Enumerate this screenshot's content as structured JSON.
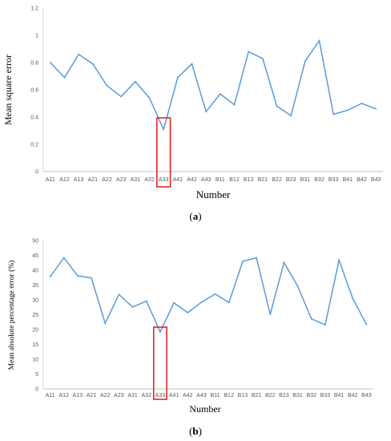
{
  "chart_data": [
    {
      "type": "line",
      "panel": "a",
      "caption_open": "(",
      "caption_letter": "a",
      "caption_close": ")",
      "xlabel": "Number",
      "ylabel": "Mean square error",
      "ylim": [
        0,
        1.2
      ],
      "yticks": [
        "0",
        "0.2",
        "0.4",
        "0.6",
        "0.8",
        "1",
        "1.2"
      ],
      "categories": [
        "A11",
        "A12",
        "A13",
        "A21",
        "A22",
        "A23",
        "A31",
        "A32",
        "A33",
        "A41",
        "A42",
        "A43",
        "B11",
        "B12",
        "B13",
        "B21",
        "B22",
        "B23",
        "B31",
        "B32",
        "B33",
        "B41",
        "B42",
        "B43"
      ],
      "values": [
        0.8,
        0.69,
        0.86,
        0.79,
        0.63,
        0.55,
        0.66,
        0.54,
        0.31,
        0.69,
        0.79,
        0.44,
        0.57,
        0.49,
        0.88,
        0.83,
        0.48,
        0.41,
        0.81,
        0.96,
        0.42,
        0.45,
        0.5,
        0.46
      ],
      "highlight_category": "A33",
      "grid": false,
      "line_color": "#5b9bd5",
      "highlight_color": "#e31a1c"
    },
    {
      "type": "line",
      "panel": "b",
      "caption_open": "(",
      "caption_letter": "b",
      "caption_close": ")",
      "xlabel": "Number",
      "ylabel": "Mean absolute percentage error (%)",
      "ylim": [
        0,
        50
      ],
      "yticks": [
        "0",
        "5",
        "10",
        "15",
        "20",
        "25",
        "30",
        "35",
        "40",
        "45",
        "50"
      ],
      "categories": [
        "A11",
        "A12",
        "A13",
        "A21",
        "A22",
        "A23",
        "A31",
        "A32",
        "A33",
        "A41",
        "A42",
        "A43",
        "B11",
        "B12",
        "B13",
        "B21",
        "B22",
        "B23",
        "B31",
        "B32",
        "B33",
        "B41",
        "B42",
        "B43"
      ],
      "values": [
        37.8,
        44.2,
        38.1,
        37.4,
        22.1,
        31.8,
        27.6,
        29.6,
        19.2,
        29.0,
        25.7,
        29.2,
        32.0,
        29.1,
        43.0,
        44.2,
        25.1,
        42.6,
        34.6,
        23.6,
        21.6,
        43.4,
        30.5,
        21.7
      ],
      "highlight_category": "A33",
      "grid": false,
      "line_color": "#5b9bd5",
      "highlight_color": "#e31a1c"
    }
  ]
}
